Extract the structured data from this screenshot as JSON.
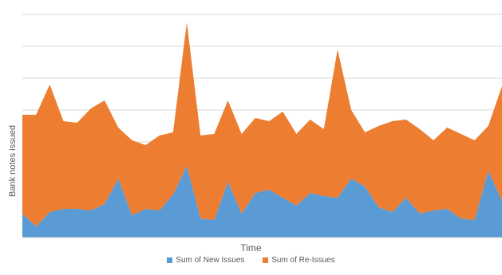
{
  "chart_data": {
    "type": "area",
    "stacked": true,
    "title": "",
    "xlabel": "Time",
    "ylabel": "Bank notes issued",
    "ylim": [
      0,
      7
    ],
    "grid": true,
    "legend": "bottom",
    "series": [
      {
        "name": "Sum of New Issues",
        "color": "#5b9bd5",
        "values": [
          0.75,
          0.35,
          0.8,
          0.9,
          0.9,
          0.85,
          1.05,
          1.85,
          0.7,
          0.9,
          0.85,
          1.35,
          2.25,
          0.6,
          0.55,
          1.75,
          0.75,
          1.4,
          1.5,
          1.25,
          1.0,
          1.4,
          1.3,
          1.25,
          1.85,
          1.6,
          0.95,
          0.8,
          1.25,
          0.75,
          0.85,
          0.9,
          0.6,
          0.55,
          2.1,
          1.15
        ]
      },
      {
        "name": "Sum of Re-Issues",
        "color": "#ed7d31",
        "values": [
          3.1,
          3.5,
          4.0,
          2.75,
          2.7,
          3.2,
          3.25,
          1.6,
          2.35,
          2.0,
          2.35,
          1.95,
          4.5,
          2.6,
          2.7,
          2.55,
          2.5,
          2.35,
          2.15,
          2.7,
          2.25,
          2.3,
          2.1,
          4.65,
          2.15,
          1.7,
          2.55,
          2.85,
          2.45,
          2.65,
          2.2,
          2.55,
          2.65,
          2.5,
          1.4,
          3.6
        ]
      }
    ]
  }
}
